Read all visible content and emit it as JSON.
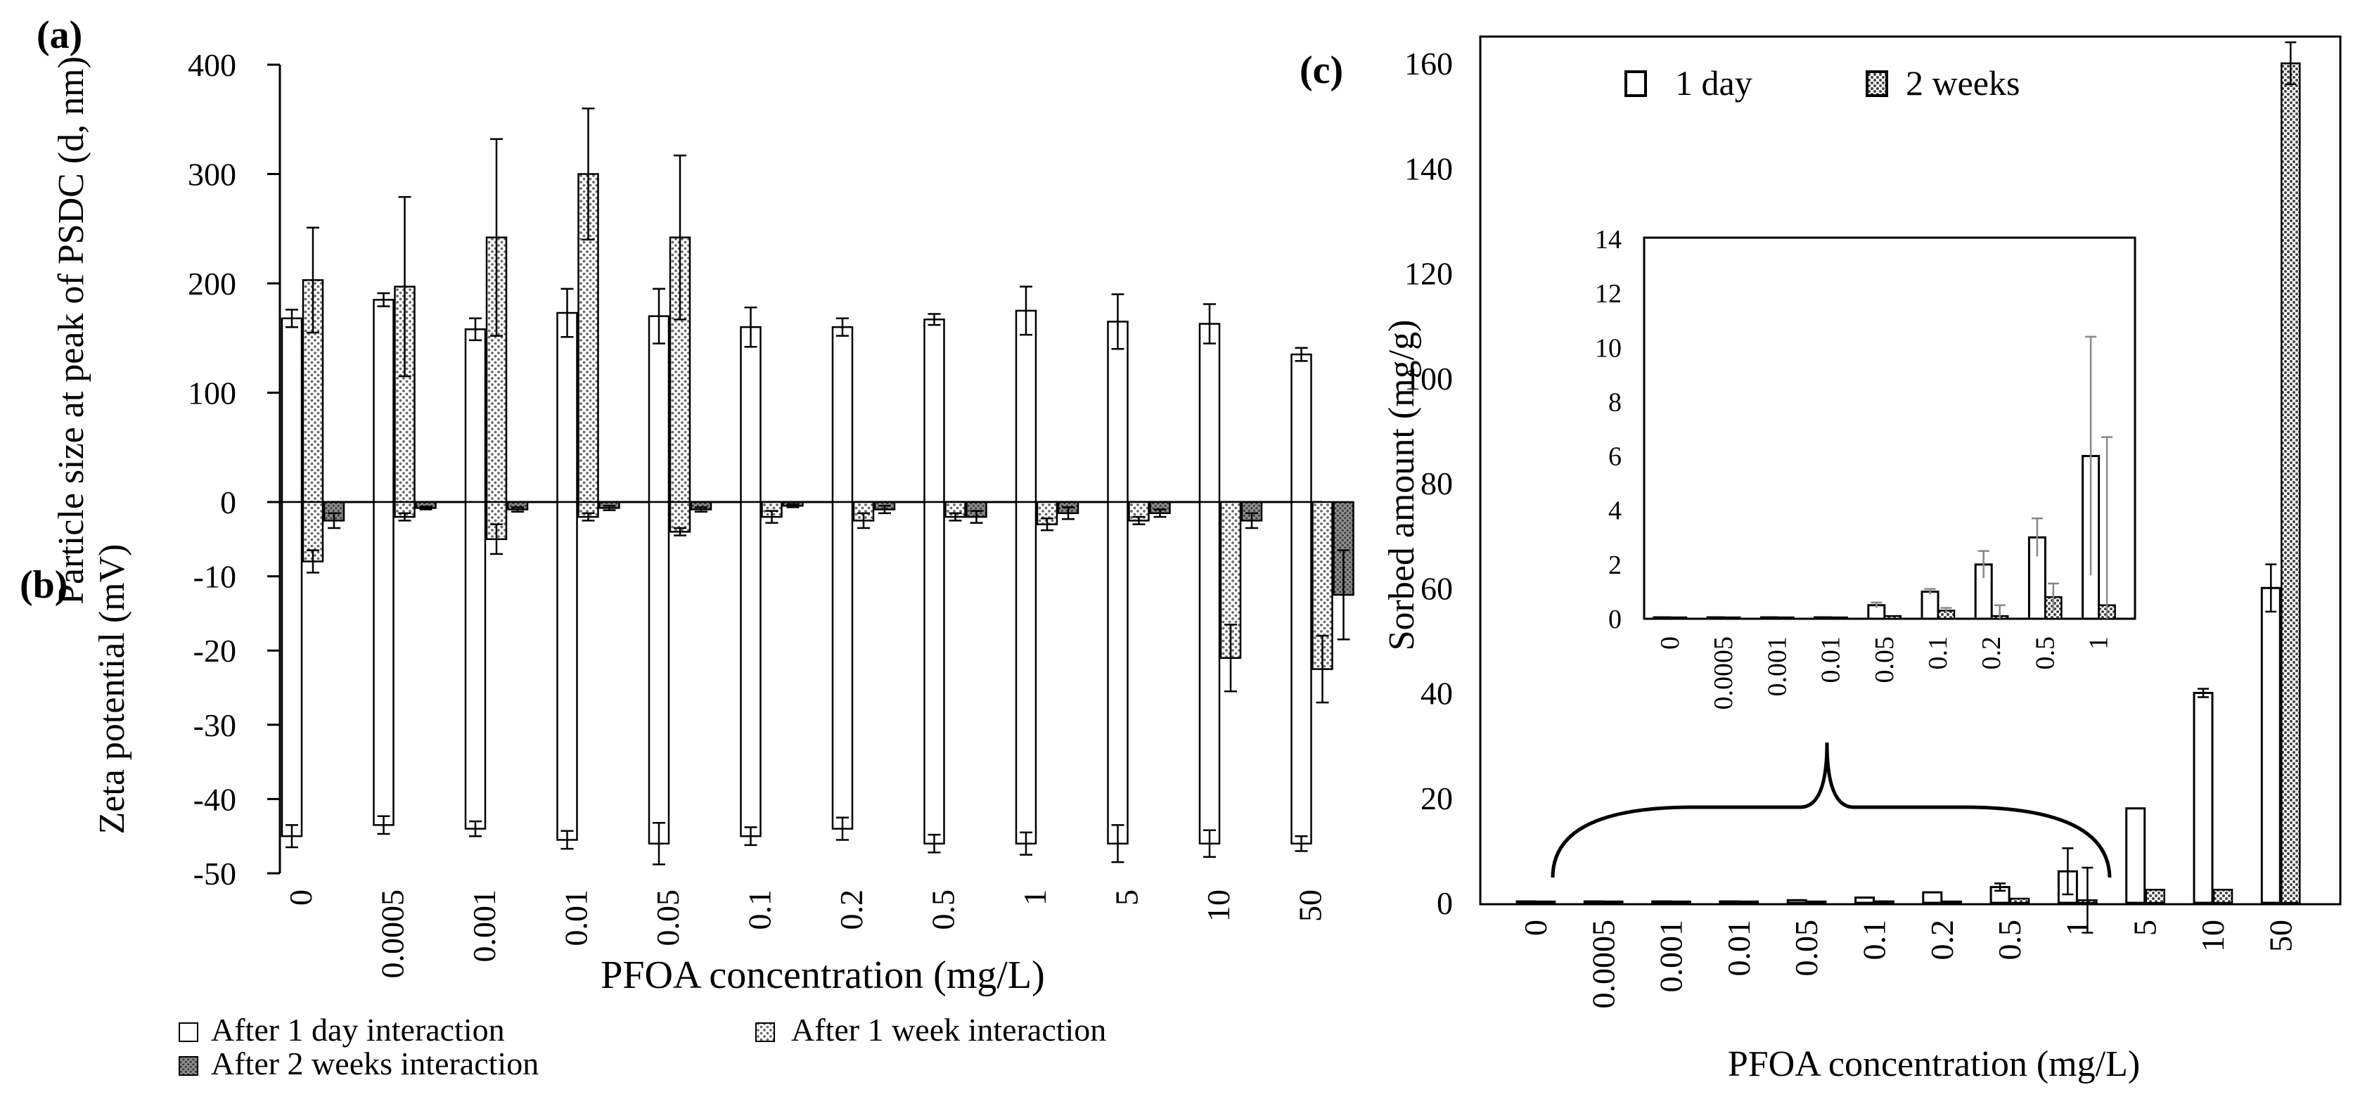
{
  "chart_data": [
    {
      "panel": "(a)",
      "type": "bar",
      "ylabel": "Particle size at peak of PSDC (d, nm)",
      "ylim": [
        0,
        400
      ],
      "yticks": [
        100,
        200,
        300,
        400
      ],
      "categories": [
        "0",
        "0.0005",
        "0.001",
        "0.01",
        "0.05",
        "0.1",
        "0.2",
        "0.5",
        "1",
        "5",
        "10",
        "50"
      ],
      "series": [
        {
          "name": "After 1 day interaction",
          "values": [
            168,
            185,
            158,
            173,
            170,
            160,
            160,
            167,
            175,
            165,
            163,
            135
          ],
          "errors": [
            8,
            6,
            10,
            22,
            25,
            18,
            8,
            5,
            22,
            25,
            18,
            6
          ]
        },
        {
          "name": "After 1 week interaction",
          "values": [
            203,
            197,
            242,
            300,
            242,
            null,
            null,
            null,
            null,
            null,
            null,
            null
          ],
          "errors": [
            48,
            82,
            90,
            60,
            75,
            null,
            null,
            null,
            null,
            null,
            null,
            null
          ]
        }
      ]
    },
    {
      "panel": "(b)",
      "type": "bar",
      "ylabel": "Zeta potential (mV)",
      "ylim": [
        -50,
        0
      ],
      "yticks": [
        0,
        -10,
        -20,
        -30,
        -40,
        -50
      ],
      "categories": [
        "0",
        "0.0005",
        "0.001",
        "0.01",
        "0.05",
        "0.1",
        "0.2",
        "0.5",
        "1",
        "5",
        "10",
        "50"
      ],
      "xlabel": "PFOA concentration (mg/L)",
      "series": [
        {
          "name": "After 1 day interaction",
          "values": [
            -45,
            -43.5,
            -44,
            -45.5,
            -46,
            -45,
            -44,
            -46,
            -46,
            -46,
            -46,
            -46
          ],
          "errors": [
            1.5,
            1.2,
            1,
            1.2,
            2.8,
            1.2,
            1.5,
            1.2,
            1.5,
            2.5,
            1.8,
            1
          ]
        },
        {
          "name": "After 1 week interaction",
          "values": [
            -8,
            -2,
            -5,
            -2,
            -4,
            -2,
            -2.5,
            -2,
            -3,
            -2.5,
            -21,
            -22.5
          ],
          "errors": [
            1.5,
            0.5,
            2,
            0.5,
            0.5,
            0.8,
            1,
            0.5,
            0.8,
            0.5,
            4.5,
            4.5
          ]
        },
        {
          "name": "After 2 weeks interaction",
          "values": [
            -2.5,
            -0.8,
            -1,
            -0.8,
            -1,
            -0.5,
            -1,
            -2,
            -1.5,
            -1.5,
            -2.5,
            -12.5
          ],
          "errors": [
            1,
            0.2,
            0.3,
            0.3,
            0.3,
            0.2,
            0.5,
            0.8,
            0.8,
            0.5,
            1,
            6
          ]
        }
      ]
    },
    {
      "panel": "(c)",
      "type": "bar",
      "ylabel": "Sorbed amount (mg/g)",
      "xlabel": "PFOA concentration (mg/L)",
      "ylim": [
        0,
        165
      ],
      "yticks": [
        0,
        20,
        40,
        60,
        80,
        100,
        120,
        140,
        160
      ],
      "categories": [
        "0",
        "0.0005",
        "0.001",
        "0.01",
        "0.05",
        "0.1",
        "0.2",
        "0.5",
        "1",
        "5",
        "10",
        "50"
      ],
      "series": [
        {
          "name": "1 day",
          "values": [
            0,
            0,
            0,
            0.05,
            0.5,
            1,
            2,
            3,
            6,
            18,
            40,
            60
          ],
          "errors": [
            0,
            0,
            0,
            0,
            0.1,
            0.1,
            0.5,
            0.7,
            4.4,
            0.3,
            0.8,
            4.5
          ]
        },
        {
          "name": "2 weeks",
          "values": [
            0,
            0,
            0,
            0,
            0.1,
            0.3,
            0.1,
            0.8,
            0.5,
            2.5,
            2.5,
            160
          ],
          "errors": [
            0,
            0,
            0,
            0,
            0,
            0.1,
            0.4,
            0.5,
            6.2,
            0.3,
            0.4,
            4
          ]
        }
      ],
      "inset": {
        "categories": [
          "0",
          "0.0005",
          "0.001",
          "0.01",
          "0.05",
          "0.1",
          "0.2",
          "0.5",
          "1"
        ],
        "ylim": [
          0,
          14
        ],
        "yticks": [
          0,
          2,
          4,
          6,
          8,
          10,
          12,
          14
        ]
      }
    }
  ],
  "panel_labels": {
    "a": "(a)",
    "b": "(b)",
    "c": "(c)"
  },
  "legend_ab": {
    "day1": "After 1 day interaction",
    "week1": "After 1 week interaction",
    "week2": "After 2 weeks interaction"
  },
  "legend_c": {
    "day1": "1 day",
    "week2": "2 weeks"
  },
  "colors": {
    "ink": "#000000",
    "bar_empty": "#ffffff",
    "dots_light": "#777777",
    "dots_dark": "#444444",
    "bar_dark_fill": "#999999"
  }
}
